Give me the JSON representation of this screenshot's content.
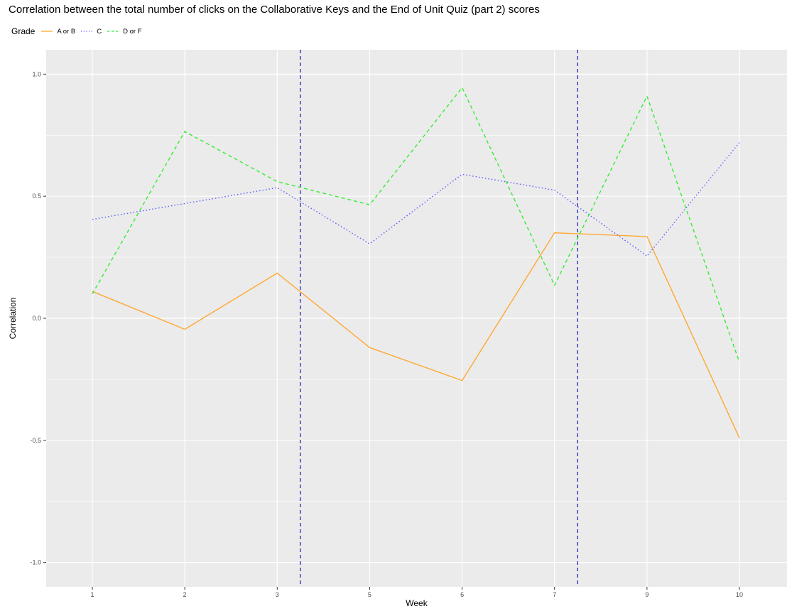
{
  "chart_data": {
    "type": "line",
    "title": "Correlation between the total number of clicks on the Collaborative Keys and the End of Unit Quiz (part 2) scores",
    "xlabel": "Week",
    "ylabel": "Correlation",
    "legend_title": "Grade",
    "legend_position": "top-left",
    "categories": [
      "1",
      "2",
      "3",
      "5",
      "6",
      "7",
      "9",
      "10"
    ],
    "ylim": [
      -1.1,
      1.1
    ],
    "y_ticks": [
      -1.0,
      -0.5,
      0.0,
      0.5,
      1.0
    ],
    "y_tick_labels": [
      "-1.0",
      "-0.5",
      "0.0",
      "0.5",
      "1.0"
    ],
    "grid": true,
    "series": [
      {
        "name": "A or B",
        "color": "#FFA833",
        "dash": "solid",
        "values": [
          0.11,
          -0.045,
          0.185,
          -0.12,
          -0.255,
          0.35,
          0.335,
          -0.49
        ]
      },
      {
        "name": "C",
        "color": "#5A5AFF",
        "dash": "dotted",
        "values": [
          0.405,
          0.47,
          0.535,
          0.305,
          0.59,
          0.525,
          0.255,
          0.72
        ]
      },
      {
        "name": "D or F",
        "color": "#33EE33",
        "dash": "dashed",
        "values": [
          0.1,
          0.765,
          0.56,
          0.465,
          0.945,
          0.135,
          0.91,
          -0.18
        ]
      }
    ],
    "vertical_lines": [
      {
        "x": 3.5,
        "color": "#3333BB",
        "dash": "dashed"
      },
      {
        "x": 7.5,
        "color": "#3333BB",
        "dash": "dashed"
      }
    ]
  }
}
